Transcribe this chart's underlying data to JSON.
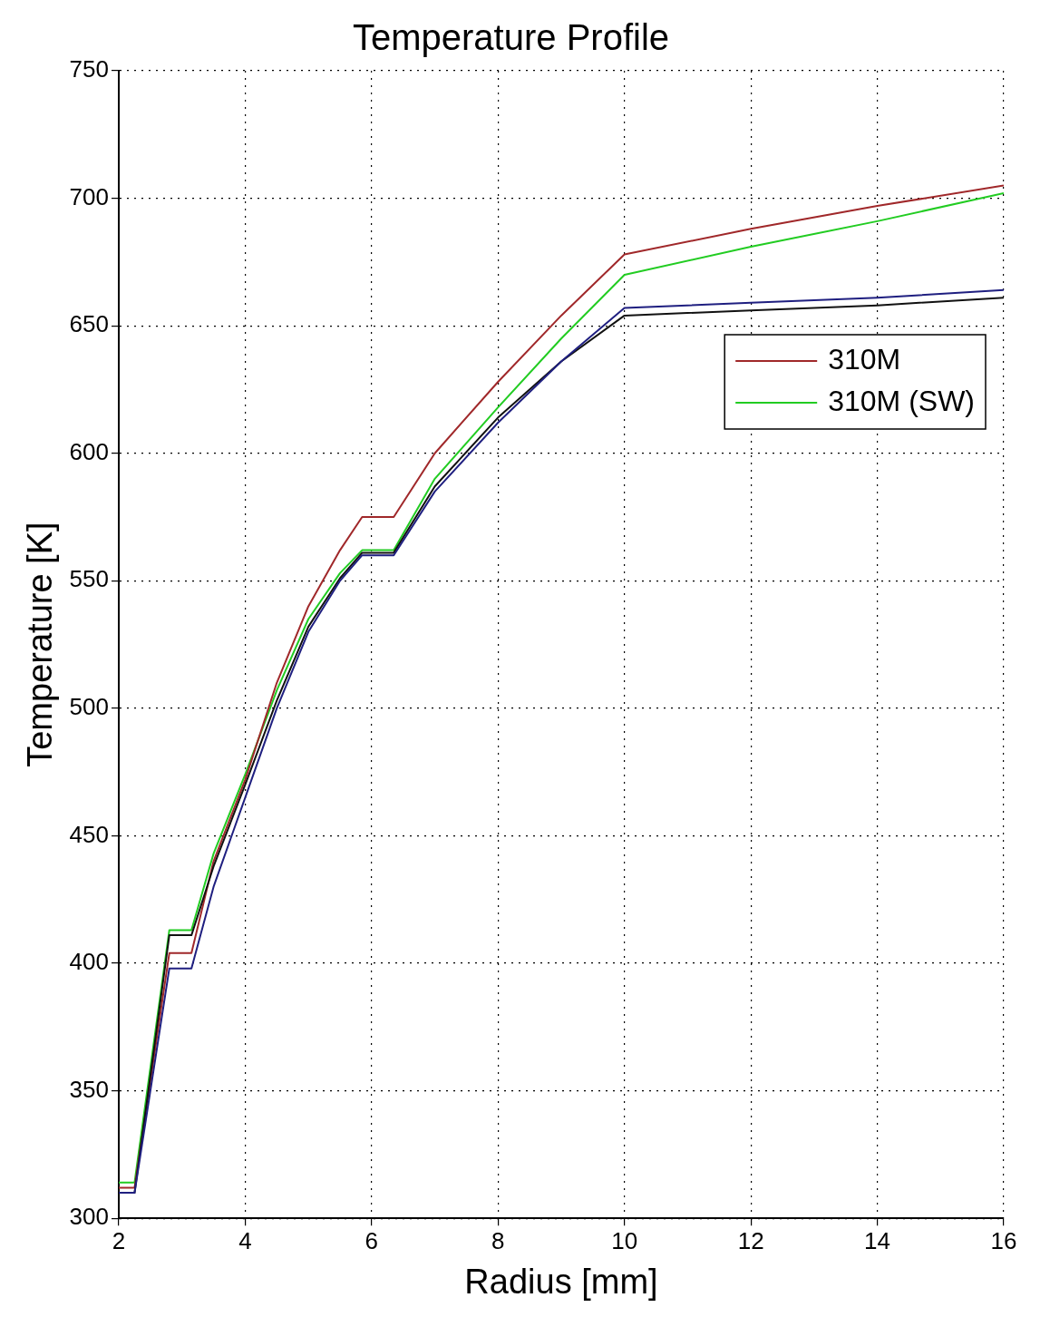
{
  "chart_data": {
    "type": "line",
    "title": "Temperature Profile",
    "xlabel": "Radius [mm]",
    "ylabel": "Temperature [K]",
    "xlim": [
      2,
      16
    ],
    "xticks": [
      2,
      4,
      6,
      8,
      10,
      12,
      14,
      16
    ],
    "ylim": [
      300,
      750
    ],
    "yticks": [
      300,
      350,
      400,
      450,
      500,
      550,
      600,
      650,
      700,
      750
    ],
    "grid": true,
    "line_style": "solid",
    "legend": "right",
    "series": [
      {
        "color": "#1f1f80",
        "x": [
          2,
          2.25,
          2.8,
          3.15,
          3.5,
          4,
          4.5,
          5,
          5.5,
          5.85,
          6.35,
          7,
          8,
          9,
          10,
          12,
          14,
          16
        ],
        "values": [
          310,
          310,
          398,
          398,
          430,
          465,
          500,
          530,
          550,
          560,
          560,
          585,
          612,
          636,
          657,
          659,
          661,
          664
        ]
      },
      {
        "color": "#111111",
        "x": [
          2,
          2.25,
          2.8,
          3.15,
          3.5,
          4,
          4.5,
          5,
          5.5,
          5.85,
          6.35,
          7,
          8,
          9,
          10,
          12,
          14,
          16
        ],
        "values": [
          310,
          310,
          411,
          411,
          438,
          470,
          503,
          532,
          551,
          561,
          561,
          587,
          614,
          636,
          654,
          656,
          658,
          661
        ]
      },
      {
        "name": "310M",
        "color": "#a0282a",
        "x": [
          2,
          2.25,
          2.8,
          3.15,
          3.5,
          4,
          4.5,
          5,
          5.5,
          5.85,
          6.35,
          7,
          8,
          9,
          10,
          12,
          14,
          16
        ],
        "values": [
          312,
          312,
          404,
          404,
          440,
          472,
          510,
          540,
          562,
          575,
          575,
          600,
          628,
          654,
          678,
          688,
          697,
          705
        ]
      },
      {
        "name": "310M (SW)",
        "color": "#22cc22",
        "x": [
          2,
          2.25,
          2.8,
          3.15,
          3.5,
          4,
          4.5,
          5,
          5.5,
          5.85,
          6.35,
          7,
          8,
          9,
          10,
          12,
          14,
          16
        ],
        "values": [
          314,
          314,
          413,
          413,
          443,
          474,
          507,
          535,
          553,
          562,
          562,
          590,
          618,
          645,
          670,
          681,
          691,
          702
        ]
      }
    ]
  }
}
